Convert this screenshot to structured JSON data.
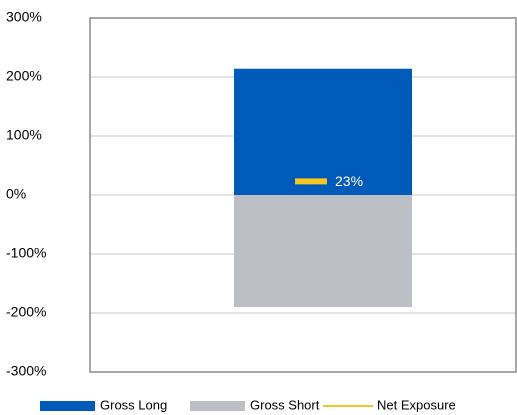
{
  "chart_data": {
    "type": "bar",
    "categories": [
      null
    ],
    "series": [
      {
        "name": "Gross Long",
        "color": "#005ab9",
        "values": [
          214
        ]
      },
      {
        "name": "Gross Short",
        "color": "#bcc0c6",
        "values": [
          -190
        ]
      },
      {
        "name": "Net Exposure",
        "color": "#f5c623",
        "type": "line",
        "values": [
          23
        ],
        "value_labels": [
          "23%"
        ]
      }
    ],
    "ylim": [
      -300,
      300
    ],
    "yticks": [
      {
        "value": -300,
        "label": "-300%"
      },
      {
        "value": -200,
        "label": "-200%"
      },
      {
        "value": -100,
        "label": "-100%"
      },
      {
        "value": 0,
        "label": "0%"
      },
      {
        "value": 100,
        "label": "100%"
      },
      {
        "value": 200,
        "label": "200%"
      },
      {
        "value": 300,
        "label": "300%"
      }
    ],
    "grid": true,
    "legend": "bottom"
  }
}
